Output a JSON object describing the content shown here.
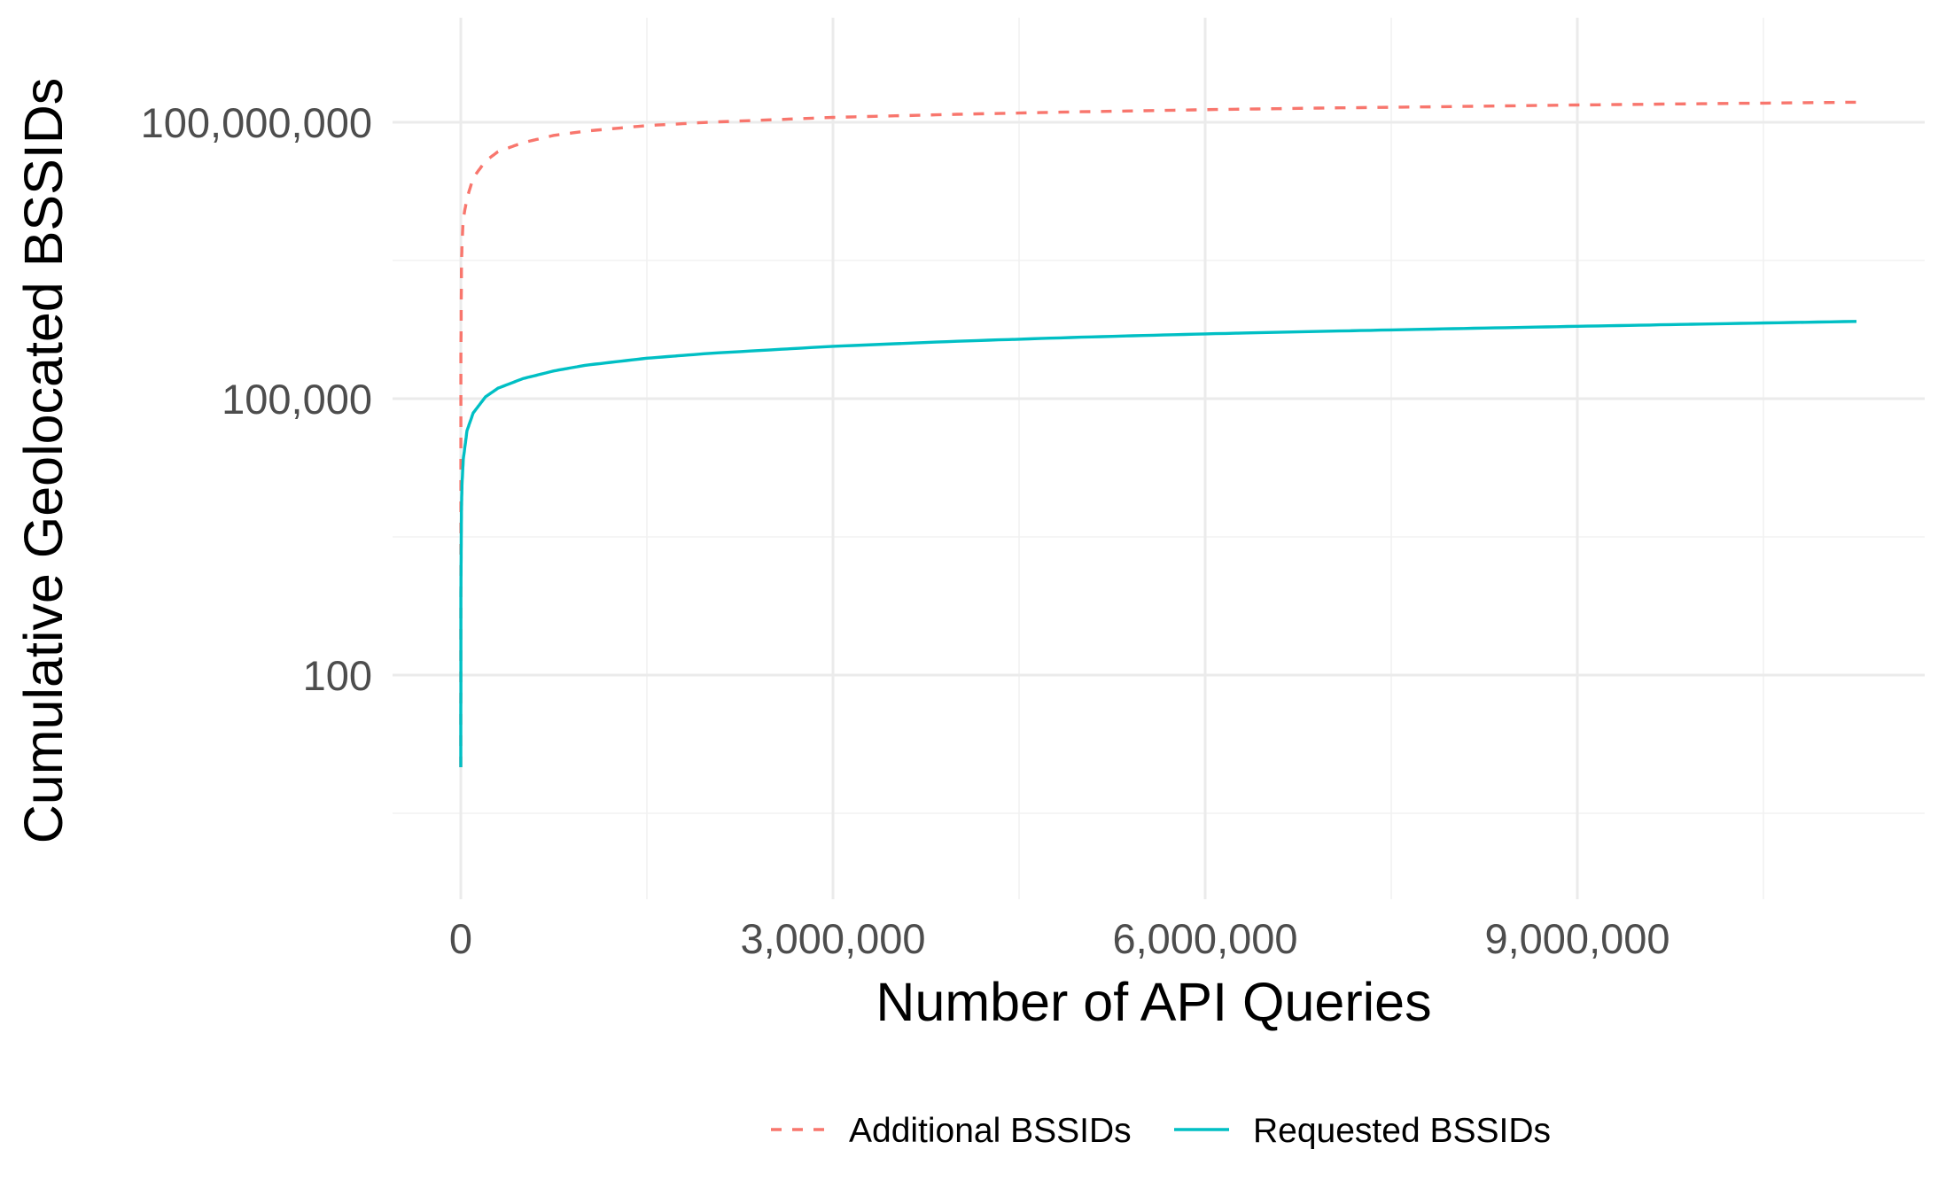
{
  "chart_data": {
    "type": "line",
    "title": "",
    "xlabel": "Number of API Queries",
    "ylabel": "Cumulative Geolocated BSSIDs",
    "x_scale": "linear",
    "y_scale": "log10",
    "xlim": [
      0,
      11250000
    ],
    "ylim": [
      1,
      1000000000
    ],
    "x_ticks": [
      0,
      3000000,
      6000000,
      9000000
    ],
    "x_tick_labels": [
      "0",
      "3,000,000",
      "6,000,000",
      "9,000,000"
    ],
    "y_ticks": [
      100,
      100000,
      100000000
    ],
    "y_tick_labels": [
      "100",
      "100,000",
      "100,000,000"
    ],
    "grid": true,
    "legend_position": "bottom",
    "series": [
      {
        "name": "Additional BSSIDs",
        "color": "#F8766D",
        "linestyle": "dashed",
        "x": [
          0,
          1000,
          5000,
          10000,
          20000,
          50000,
          100000,
          200000,
          300000,
          500000,
          750000,
          1000000,
          1500000,
          2000000,
          3000000,
          4000000,
          5000000,
          6000000,
          7000000,
          8000000,
          9000000,
          10000000,
          11250000
        ],
        "y": [
          10,
          300000,
          2500000,
          5000000,
          9000000,
          15000000,
          25000000,
          38000000,
          48000000,
          60000000,
          72000000,
          80000000,
          92000000,
          100000000,
          113000000,
          122000000,
          130000000,
          137000000,
          143000000,
          148000000,
          154000000,
          159000000,
          165000000
        ]
      },
      {
        "name": "Requested BSSIDs",
        "color": "#00BFC4",
        "linestyle": "solid",
        "x": [
          0,
          1000,
          5000,
          10000,
          20000,
          50000,
          100000,
          200000,
          300000,
          500000,
          750000,
          1000000,
          1500000,
          2000000,
          3000000,
          4000000,
          5000000,
          6000000,
          7000000,
          8000000,
          9000000,
          10000000,
          11250000
        ],
        "y": [
          10,
          800,
          6000,
          12000,
          22000,
          45000,
          70000,
          105000,
          130000,
          165000,
          200000,
          230000,
          275000,
          310000,
          370000,
          420000,
          465000,
          505000,
          540000,
          575000,
          610000,
          645000,
          690000
        ]
      }
    ]
  }
}
